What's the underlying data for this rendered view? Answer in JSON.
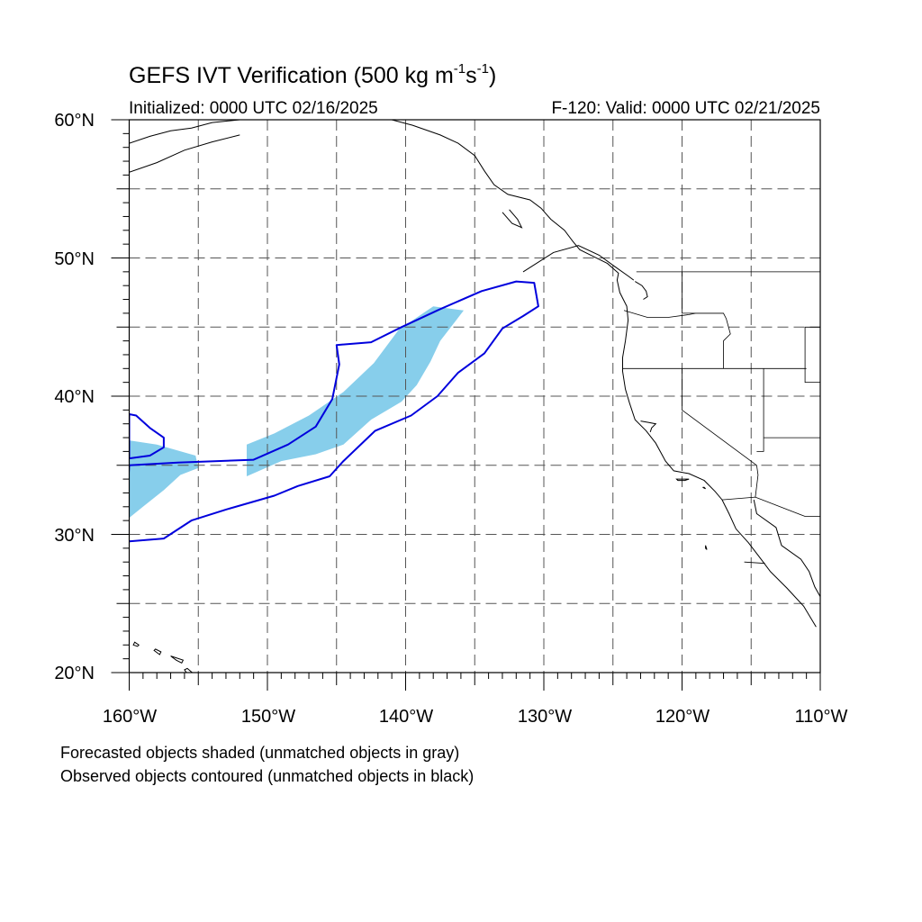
{
  "title": {
    "prefix": "GEFS IVT Verification (500 kg m",
    "exp1": "-1",
    "mid": "s",
    "exp2": "-1",
    "suffix": ")"
  },
  "initialized": "Initialized: 0000 UTC 02/16/2025",
  "valid": "F-120: Valid: 0000 UTC 02/21/2025",
  "lat_labels": [
    "60°N",
    "50°N",
    "40°N",
    "30°N",
    "20°N"
  ],
  "lon_labels": [
    "160°W",
    "150°W",
    "140°W",
    "130°W",
    "120°W",
    "110°W"
  ],
  "footnotes": [
    "Forecasted objects shaded (unmatched objects in gray)",
    "Observed objects contoured (unmatched objects in black)"
  ],
  "map": {
    "extent": {
      "lon_min": -160,
      "lon_max": -110,
      "lat_min": 20,
      "lat_max": 60
    },
    "gridlines": "dashed every 5 degrees",
    "colors": {
      "forecast_fill": "#87ceeb",
      "observed_contour": "#0000dd",
      "coastline": "#000000",
      "grid": "#555555"
    },
    "forecast_objects": [
      [
        [
          -151.5,
          34.2
        ],
        [
          -151.5,
          36.5
        ],
        [
          -149.5,
          37.3
        ],
        [
          -147,
          38.6
        ],
        [
          -144.5,
          40.3
        ],
        [
          -142.3,
          42.4
        ],
        [
          -140.5,
          44.8
        ],
        [
          -138,
          46.5
        ],
        [
          -135.8,
          46.2
        ],
        [
          -137.5,
          44.0
        ],
        [
          -138.2,
          42.5
        ],
        [
          -139.2,
          40.8
        ],
        [
          -140.3,
          39.6
        ],
        [
          -142.5,
          38.3
        ],
        [
          -144.5,
          36.5
        ],
        [
          -146.5,
          35.8
        ],
        [
          -149,
          35.3
        ]
      ],
      [
        [
          -160,
          31.2
        ],
        [
          -160,
          36.8
        ],
        [
          -158,
          36.5
        ],
        [
          -155.2,
          35.7
        ],
        [
          -155,
          34.8
        ],
        [
          -156.3,
          34.3
        ],
        [
          -157.5,
          33.2
        ],
        [
          -159,
          32.0
        ]
      ]
    ],
    "observed_objects": [
      [
        [
          -160,
          35.0
        ],
        [
          -156.5,
          35.2
        ],
        [
          -151,
          35.4
        ],
        [
          -148.5,
          36.5
        ],
        [
          -146.5,
          37.8
        ],
        [
          -145.3,
          39.8
        ],
        [
          -144.8,
          42.3
        ],
        [
          -145,
          43.7
        ],
        [
          -142.5,
          43.9
        ],
        [
          -140.3,
          45.0
        ],
        [
          -137.5,
          46.3
        ],
        [
          -134.5,
          47.6
        ],
        [
          -132,
          48.3
        ],
        [
          -130.7,
          48.2
        ],
        [
          -130.4,
          46.5
        ],
        [
          -131.5,
          45.8
        ],
        [
          -133,
          44.9
        ],
        [
          -134.3,
          43.1
        ],
        [
          -136.2,
          41.7
        ],
        [
          -137.7,
          40.0
        ],
        [
          -139.6,
          38.6
        ],
        [
          -142.2,
          37.5
        ],
        [
          -144.5,
          35.3
        ],
        [
          -145.5,
          34.2
        ],
        [
          -147.8,
          33.5
        ],
        [
          -149.5,
          32.8
        ],
        [
          -153,
          31.8
        ],
        [
          -155.5,
          31.0
        ],
        [
          -157.5,
          29.7
        ],
        [
          -160,
          29.5
        ],
        [
          -160.3,
          30.2
        ]
      ],
      [
        [
          -160,
          35.5
        ],
        [
          -158.5,
          35.7
        ],
        [
          -157.5,
          36.3
        ],
        [
          -157.5,
          37.0
        ],
        [
          -158.5,
          37.7
        ],
        [
          -159.5,
          38.6
        ],
        [
          -160,
          38.7
        ]
      ]
    ],
    "coastlines": [
      [
        [
          -160,
          58.3
        ],
        [
          -158.5,
          58.8
        ],
        [
          -157,
          59.2
        ],
        [
          -155.5,
          59.4
        ],
        [
          -154,
          59.8
        ],
        [
          -152,
          60
        ]
      ],
      [
        [
          -160,
          56.2
        ],
        [
          -158,
          56.9
        ],
        [
          -156,
          57.8
        ],
        [
          -154,
          58.4
        ],
        [
          -152,
          58.9
        ]
      ],
      [
        [
          -141,
          60
        ],
        [
          -139.5,
          59.6
        ],
        [
          -137.5,
          58.9
        ],
        [
          -136.2,
          58.3
        ],
        [
          -135,
          57.4
        ],
        [
          -134.3,
          56.3
        ],
        [
          -133.6,
          55.3
        ],
        [
          -132.6,
          54.6
        ],
        [
          -131,
          54.2
        ],
        [
          -130.2,
          53.6
        ],
        [
          -129.5,
          52.8
        ],
        [
          -128.5,
          52
        ],
        [
          -127.9,
          51.2
        ],
        [
          -127.4,
          50.6
        ],
        [
          -126.6,
          50.2
        ],
        [
          -125.4,
          49.6
        ],
        [
          -124.6,
          48.9
        ],
        [
          -124.7,
          48.4
        ],
        [
          -124.5,
          47.5
        ],
        [
          -124,
          46.5
        ],
        [
          -123.9,
          45.5
        ],
        [
          -124.1,
          44
        ],
        [
          -124.3,
          42.8
        ],
        [
          -124.3,
          41.8
        ],
        [
          -124.1,
          40.5
        ],
        [
          -123.8,
          39.5
        ],
        [
          -123.4,
          38.3
        ],
        [
          -122.6,
          37.5
        ],
        [
          -121.9,
          36.6
        ],
        [
          -121.2,
          35.3
        ],
        [
          -120.6,
          34.6
        ],
        [
          -119.5,
          34.4
        ],
        [
          -118.4,
          33.9
        ],
        [
          -117.6,
          33.1
        ],
        [
          -117.1,
          32.5
        ],
        [
          -116.6,
          31.5
        ],
        [
          -116.1,
          30.4
        ],
        [
          -115.2,
          29.4
        ],
        [
          -114.2,
          28.1
        ],
        [
          -113.6,
          27.3
        ],
        [
          -112.4,
          26.1
        ],
        [
          -111.2,
          24.8
        ],
        [
          -110.3,
          23.3
        ]
      ],
      [
        [
          -131.5,
          49
        ],
        [
          -129.3,
          50.4
        ],
        [
          -127.5,
          50.9
        ],
        [
          -126,
          50.2
        ],
        [
          -124.9,
          49.4
        ],
        [
          -123.9,
          48.7
        ],
        [
          -123.5,
          48.4
        ]
      ],
      [
        [
          -132.5,
          53.5
        ],
        [
          -131.9,
          52.8
        ],
        [
          -131.6,
          52.2
        ],
        [
          -132.3,
          52.5
        ],
        [
          -133,
          53.3
        ]
      ],
      [
        [
          -114.8,
          32.5
        ],
        [
          -114.6,
          31.5
        ],
        [
          -113.2,
          30.5
        ],
        [
          -112.8,
          29.2
        ],
        [
          -111.4,
          28.2
        ],
        [
          -110.8,
          27.3
        ],
        [
          -110.4,
          26.2
        ],
        [
          -110,
          25.5
        ]
      ],
      [
        [
          -123,
          38.2
        ],
        [
          -122.4,
          38.1
        ],
        [
          -121.9,
          38
        ],
        [
          -122.2,
          37.7
        ],
        [
          -122.3,
          37.4
        ]
      ],
      [
        [
          -123.4,
          48.3
        ],
        [
          -122.9,
          48
        ],
        [
          -122.6,
          47.6
        ],
        [
          -122.5,
          47.2
        ],
        [
          -122.8,
          47.0
        ]
      ],
      [
        [
          -111.2,
          60
        ],
        [
          -110,
          60.3
        ]
      ]
    ],
    "islands": [
      [
        [
          -159.6,
          22.2
        ],
        [
          -159.3,
          22.0
        ],
        [
          -159.4,
          21.9
        ],
        [
          -159.7,
          22.0
        ]
      ],
      [
        [
          -158.2,
          21.6
        ],
        [
          -157.8,
          21.3
        ],
        [
          -157.7,
          21.5
        ],
        [
          -158.1,
          21.7
        ]
      ],
      [
        [
          -157,
          21.2
        ],
        [
          -156.6,
          20.9
        ],
        [
          -156.2,
          20.7
        ],
        [
          -156.1,
          20.9
        ],
        [
          -156.7,
          21.1
        ]
      ],
      [
        [
          -156,
          20.2
        ],
        [
          -155.5,
          19.5
        ],
        [
          -155.2,
          19.8
        ],
        [
          -155.8,
          20.3
        ]
      ],
      [
        [
          -120.4,
          34.0
        ],
        [
          -119.5,
          34.0
        ],
        [
          -119.8,
          33.9
        ],
        [
          -120.3,
          33.9
        ]
      ],
      [
        [
          -118.5,
          33.4
        ],
        [
          -118.3,
          33.3
        ],
        [
          -118.4,
          33.4
        ]
      ],
      [
        [
          -118.3,
          29.2
        ],
        [
          -118.2,
          28.9
        ],
        [
          -118.3,
          29.0
        ]
      ]
    ],
    "political_lines": [
      [
        [
          -141,
          60
        ],
        [
          -141,
          60.5
        ]
      ],
      [
        [
          -123.3,
          49
        ],
        [
          -110,
          49
        ]
      ],
      [
        [
          -120,
          49
        ],
        [
          -120,
          46
        ],
        [
          -119,
          46
        ],
        [
          -117,
          46
        ],
        [
          -116.8,
          45.6
        ],
        [
          -116.5,
          44.5
        ],
        [
          -117,
          44
        ],
        [
          -117,
          42
        ]
      ],
      [
        [
          -124.2,
          46.2
        ],
        [
          -122.5,
          45.7
        ],
        [
          -121,
          45.7
        ],
        [
          -119.5,
          45.9
        ],
        [
          -119,
          46
        ],
        [
          -117,
          46
        ]
      ],
      [
        [
          -124.3,
          42
        ],
        [
          -120,
          42
        ],
        [
          -117,
          42
        ],
        [
          -111,
          42
        ]
      ],
      [
        [
          -120,
          42
        ],
        [
          -120,
          39
        ],
        [
          -114.6,
          35
        ],
        [
          -114.5,
          34.3
        ],
        [
          -114.7,
          32.7
        ]
      ],
      [
        [
          -117.1,
          32.5
        ],
        [
          -114.7,
          32.7
        ],
        [
          -111.1,
          31.3
        ],
        [
          -110,
          31.3
        ]
      ],
      [
        [
          -114.1,
          42
        ],
        [
          -114.1,
          37
        ],
        [
          -114.1,
          36
        ],
        [
          -114.6,
          36
        ]
      ],
      [
        [
          -114.1,
          37
        ],
        [
          -110,
          37
        ]
      ],
      [
        [
          -111.1,
          45
        ],
        [
          -111.1,
          41
        ],
        [
          -110,
          41
        ]
      ],
      [
        [
          -111.1,
          45
        ],
        [
          -110,
          45
        ]
      ],
      [
        [
          -115.5,
          28
        ],
        [
          -114,
          27.9
        ]
      ]
    ]
  }
}
